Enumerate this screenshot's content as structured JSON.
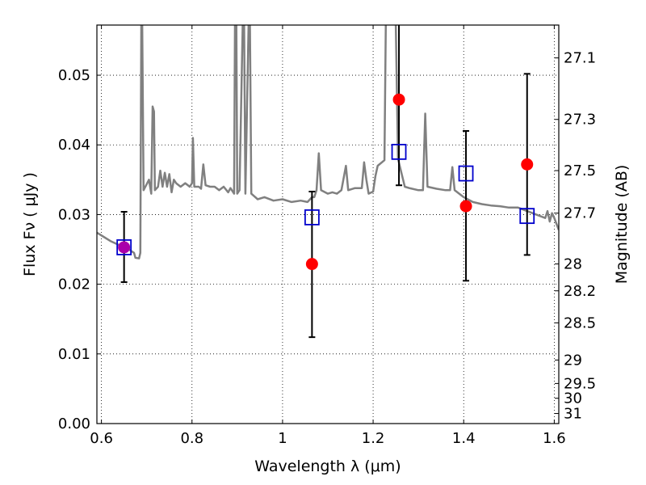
{
  "chart_data": {
    "type": "scatter",
    "xlabel": "Wavelength  λ (μm)",
    "ylabel": "Flux  Fν  ( μJy )",
    "ylabel_right": "Magnitude (AB)",
    "xlim": [
      0.59,
      1.61
    ],
    "ylim": [
      0.0,
      0.0572
    ],
    "grid": true,
    "x_ticks": [
      0.6,
      0.8,
      1.0,
      1.2,
      1.4,
      1.6
    ],
    "x_tick_labels": [
      "0.6",
      "0.8",
      "1",
      "1.2",
      "1.4",
      "1.6"
    ],
    "y_ticks": [
      0.0,
      0.01,
      0.02,
      0.03,
      0.04,
      0.05
    ],
    "y_tick_labels": [
      "0.00",
      "0.01",
      "0.02",
      "0.03",
      "0.04",
      "0.05"
    ],
    "right_ticks": [
      {
        "label": "27.1",
        "mag": 27.1
      },
      {
        "label": "27.3",
        "mag": 27.3
      },
      {
        "label": "27.5",
        "mag": 27.5
      },
      {
        "label": "27.7",
        "mag": 27.7
      },
      {
        "label": "28",
        "mag": 28.0
      },
      {
        "label": "28.2",
        "mag": 28.2
      },
      {
        "label": "28.5",
        "mag": 28.5
      },
      {
        "label": "29",
        "mag": 29.0
      },
      {
        "label": "29.5",
        "mag": 29.5
      },
      {
        "label": "30",
        "mag": 30.0
      },
      {
        "label": "31",
        "mag": 31.0
      }
    ],
    "series": [
      {
        "kind": "line",
        "color": "#808080",
        "points": [
          [
            0.59,
            0.0274
          ],
          [
            0.62,
            0.0262
          ],
          [
            0.64,
            0.0256
          ],
          [
            0.66,
            0.025
          ],
          [
            0.672,
            0.0245
          ],
          [
            0.675,
            0.0238
          ],
          [
            0.683,
            0.0237
          ],
          [
            0.686,
            0.0245
          ],
          [
            0.688,
            0.0575
          ],
          [
            0.69,
            0.0575
          ],
          [
            0.693,
            0.0335
          ],
          [
            0.705,
            0.035
          ],
          [
            0.71,
            0.033
          ],
          [
            0.713,
            0.0455
          ],
          [
            0.716,
            0.0448
          ],
          [
            0.718,
            0.0335
          ],
          [
            0.725,
            0.034
          ],
          [
            0.73,
            0.0363
          ],
          [
            0.735,
            0.034
          ],
          [
            0.74,
            0.036
          ],
          [
            0.745,
            0.034
          ],
          [
            0.75,
            0.0358
          ],
          [
            0.755,
            0.0332
          ],
          [
            0.76,
            0.035
          ],
          [
            0.765,
            0.0345
          ],
          [
            0.775,
            0.034
          ],
          [
            0.785,
            0.0345
          ],
          [
            0.795,
            0.034
          ],
          [
            0.8,
            0.0345
          ],
          [
            0.802,
            0.041
          ],
          [
            0.805,
            0.034
          ],
          [
            0.815,
            0.034
          ],
          [
            0.82,
            0.0337
          ],
          [
            0.825,
            0.0372
          ],
          [
            0.83,
            0.0342
          ],
          [
            0.84,
            0.034
          ],
          [
            0.85,
            0.034
          ],
          [
            0.86,
            0.0335
          ],
          [
            0.87,
            0.034
          ],
          [
            0.88,
            0.0332
          ],
          [
            0.885,
            0.0338
          ],
          [
            0.893,
            0.033
          ],
          [
            0.895,
            0.0575
          ],
          [
            0.898,
            0.0575
          ],
          [
            0.9,
            0.033
          ],
          [
            0.905,
            0.0335
          ],
          [
            0.912,
            0.0575
          ],
          [
            0.915,
            0.0575
          ],
          [
            0.918,
            0.033
          ],
          [
            0.925,
            0.0575
          ],
          [
            0.928,
            0.0575
          ],
          [
            0.931,
            0.033
          ],
          [
            0.945,
            0.0322
          ],
          [
            0.96,
            0.0325
          ],
          [
            0.98,
            0.032
          ],
          [
            1.0,
            0.0322
          ],
          [
            1.02,
            0.0318
          ],
          [
            1.04,
            0.032
          ],
          [
            1.055,
            0.0318
          ],
          [
            1.065,
            0.0325
          ],
          [
            1.07,
            0.0325
          ],
          [
            1.075,
            0.0335
          ],
          [
            1.08,
            0.0388
          ],
          [
            1.085,
            0.0335
          ],
          [
            1.1,
            0.033
          ],
          [
            1.11,
            0.0332
          ],
          [
            1.12,
            0.033
          ],
          [
            1.13,
            0.0335
          ],
          [
            1.14,
            0.037
          ],
          [
            1.145,
            0.0335
          ],
          [
            1.16,
            0.0338
          ],
          [
            1.175,
            0.0338
          ],
          [
            1.18,
            0.0375
          ],
          [
            1.185,
            0.035
          ],
          [
            1.19,
            0.033
          ],
          [
            1.2,
            0.0333
          ],
          [
            1.205,
            0.0355
          ],
          [
            1.21,
            0.037
          ],
          [
            1.225,
            0.0378
          ],
          [
            1.228,
            0.0575
          ],
          [
            1.234,
            0.0575
          ],
          [
            1.245,
            0.0575
          ],
          [
            1.25,
            0.0575
          ],
          [
            1.255,
            0.038
          ],
          [
            1.27,
            0.034
          ],
          [
            1.28,
            0.0338
          ],
          [
            1.3,
            0.0335
          ],
          [
            1.31,
            0.0335
          ],
          [
            1.315,
            0.0445
          ],
          [
            1.32,
            0.034
          ],
          [
            1.34,
            0.0337
          ],
          [
            1.36,
            0.0335
          ],
          [
            1.37,
            0.0335
          ],
          [
            1.375,
            0.0368
          ],
          [
            1.38,
            0.0335
          ],
          [
            1.4,
            0.0325
          ],
          [
            1.42,
            0.0318
          ],
          [
            1.44,
            0.0315
          ],
          [
            1.46,
            0.0313
          ],
          [
            1.48,
            0.0312
          ],
          [
            1.5,
            0.031
          ],
          [
            1.52,
            0.031
          ],
          [
            1.54,
            0.0305
          ],
          [
            1.56,
            0.03
          ],
          [
            1.58,
            0.0295
          ],
          [
            1.585,
            0.0305
          ],
          [
            1.59,
            0.029
          ],
          [
            1.595,
            0.0302
          ],
          [
            1.6,
            0.0295
          ],
          [
            1.61,
            0.0278
          ]
        ]
      },
      {
        "kind": "errorbar",
        "color": "#000000",
        "points": [
          {
            "x": 0.65,
            "low": 0.0203,
            "high": 0.0304
          },
          {
            "x": 1.065,
            "low": 0.0124,
            "high": 0.0333
          },
          {
            "x": 1.257,
            "low": 0.0342,
            "high": 0.0575
          },
          {
            "x": 1.405,
            "low": 0.0205,
            "high": 0.042
          },
          {
            "x": 1.54,
            "low": 0.0242,
            "high": 0.0502
          }
        ]
      },
      {
        "kind": "circle",
        "color": "#ff0000",
        "points": [
          [
            0.65,
            0.0253
          ],
          [
            1.065,
            0.0229
          ],
          [
            1.257,
            0.0465
          ],
          [
            1.405,
            0.0312
          ],
          [
            1.54,
            0.0372
          ]
        ]
      },
      {
        "kind": "square",
        "color": "#0000cc",
        "points": [
          [
            0.65,
            0.0253
          ],
          [
            1.065,
            0.0296
          ],
          [
            1.257,
            0.039
          ],
          [
            1.405,
            0.0359
          ],
          [
            1.54,
            0.0298
          ]
        ]
      }
    ],
    "overlap_color": "#aa00aa"
  }
}
